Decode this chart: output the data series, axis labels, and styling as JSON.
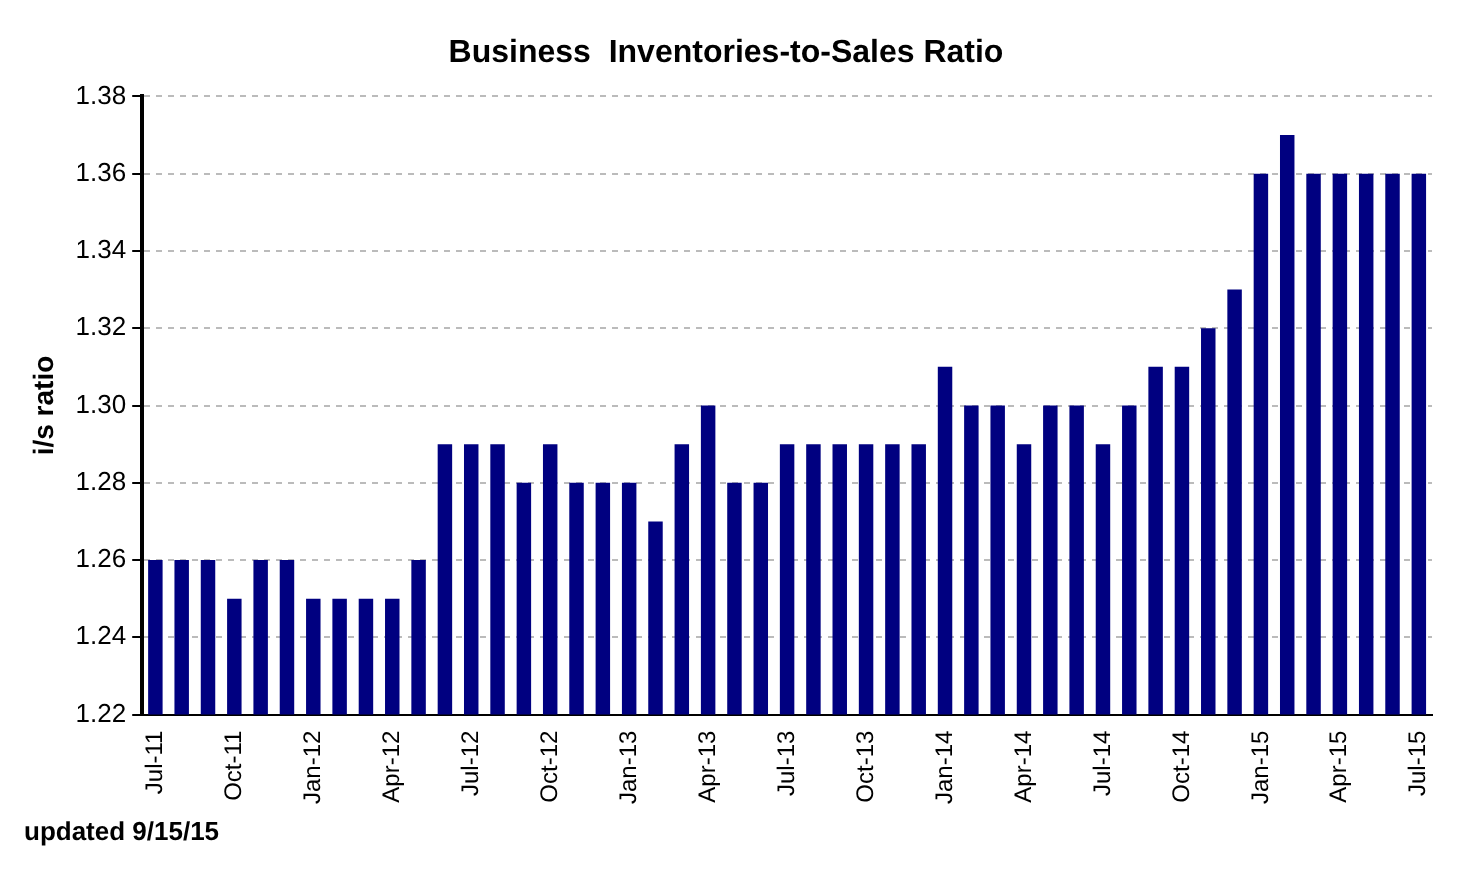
{
  "chart_data": {
    "type": "bar",
    "title": "Business  Inventories-to-Sales Ratio",
    "ylabel": "i/s ratio",
    "categories": [
      "Jul-11",
      null,
      null,
      "Oct-11",
      null,
      null,
      "Jan-12",
      null,
      null,
      "Apr-12",
      null,
      null,
      "Jul-12",
      null,
      null,
      "Oct-12",
      null,
      null,
      "Jan-13",
      null,
      null,
      "Apr-13",
      null,
      null,
      "Jul-13",
      null,
      null,
      "Oct-13",
      null,
      null,
      "Jan-14",
      null,
      null,
      "Apr-14",
      null,
      null,
      "Jul-14",
      null,
      null,
      "Oct-14",
      null,
      null,
      "Jan-15",
      null,
      null,
      "Apr-15",
      null,
      null,
      "Jul-15"
    ],
    "values": [
      1.26,
      1.26,
      1.26,
      1.25,
      1.26,
      1.26,
      1.25,
      1.25,
      1.25,
      1.25,
      1.26,
      1.29,
      1.29,
      1.29,
      1.28,
      1.29,
      1.28,
      1.28,
      1.28,
      1.27,
      1.29,
      1.3,
      1.28,
      1.28,
      1.29,
      1.29,
      1.29,
      1.29,
      1.29,
      1.29,
      1.31,
      1.3,
      1.3,
      1.29,
      1.3,
      1.3,
      1.29,
      1.3,
      1.31,
      1.31,
      1.32,
      1.33,
      1.36,
      1.37,
      1.36,
      1.36,
      1.36,
      1.36,
      1.36
    ],
    "color": "#000080",
    "ylim": [
      1.22,
      1.38
    ],
    "yticks": [
      1.22,
      1.24,
      1.26,
      1.28,
      {
        "value": 1.3,
        "label": "1.30"
      },
      1.32,
      1.34,
      1.36,
      1.38
    ],
    "grid": "y",
    "annotations": [
      "updated 9/15/15"
    ]
  }
}
